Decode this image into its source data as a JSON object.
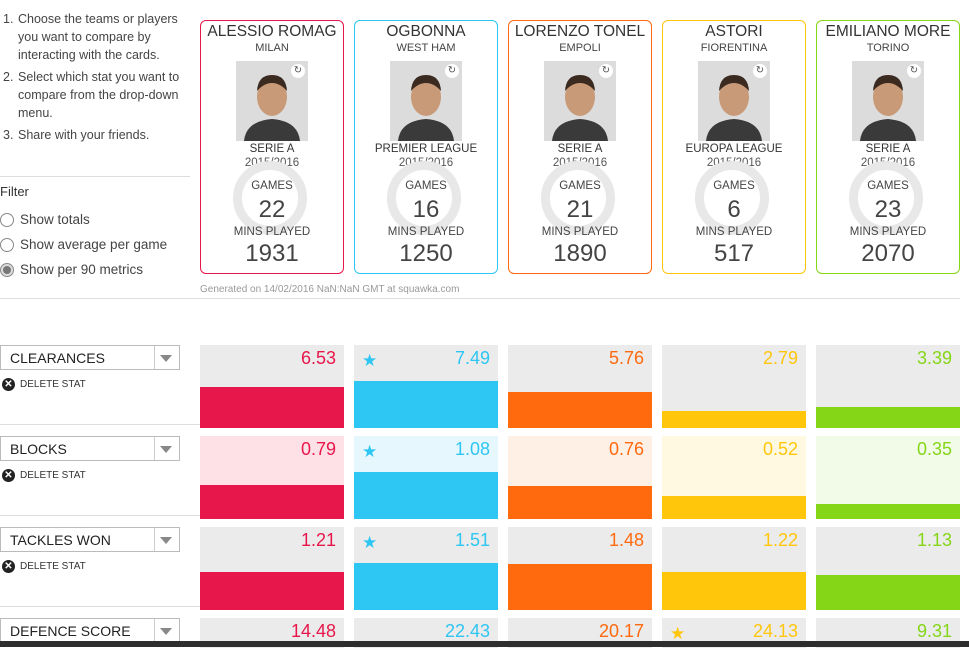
{
  "instructions": [
    {
      "num": "1.",
      "text": "Choose the teams or players you want to compare by interacting with the cards."
    },
    {
      "num": "2.",
      "text": "Select which stat you want to compare from the drop-down menu."
    },
    {
      "num": "3.",
      "text": "Share with your friends."
    }
  ],
  "filter": {
    "title": "Filter",
    "options": [
      {
        "label": "Show totals",
        "selected": false
      },
      {
        "label": "Show average per game",
        "selected": false
      },
      {
        "label": "Show per 90 metrics",
        "selected": true
      }
    ]
  },
  "labels": {
    "games": "GAMES",
    "mins_played": "MINS PLAYED",
    "delete_stat": "DELETE STAT"
  },
  "players": [
    {
      "name": "ALESSIO ROMAG",
      "club": "MILAN",
      "league": "SERIE A",
      "season": "2015/2016",
      "games": "22",
      "mins": "1931",
      "color": "#e8174b"
    },
    {
      "name": "OGBONNA",
      "club": "WEST HAM",
      "league": "PREMIER LEAGUE",
      "season": "2015/2016",
      "games": "16",
      "mins": "1250",
      "color": "#2ec6f2"
    },
    {
      "name": "LORENZO TONEL",
      "club": "EMPOLI",
      "league": "SERIE A",
      "season": "2015/2016",
      "games": "21",
      "mins": "1890",
      "color": "#ff6a0e"
    },
    {
      "name": "ASTORI",
      "club": "FIORENTINA",
      "league": "EUROPA LEAGUE",
      "season": "2015/2016",
      "games": "6",
      "mins": "517",
      "color": "#ffc60b"
    },
    {
      "name": "EMILIANO MORE",
      "club": "TORINO",
      "league": "SERIE A",
      "season": "2015/2016",
      "games": "23",
      "mins": "2070",
      "color": "#84d617"
    }
  ],
  "generated_text": "Generated on 14/02/2016 NaN:NaN GMT at squawka.com",
  "stats": [
    {
      "label": "CLEARANCES",
      "values": [
        "6.53",
        "7.49",
        "5.76",
        "2.79",
        "3.39"
      ],
      "best_index": 1,
      "level": [
        0.87,
        1.0,
        0.77,
        0.37,
        0.45
      ]
    },
    {
      "label": "BLOCKS",
      "values": [
        "0.79",
        "1.08",
        "0.76",
        "0.52",
        "0.35"
      ],
      "best_index": 1,
      "level": [
        0.73,
        1.0,
        0.7,
        0.48,
        0.32
      ]
    },
    {
      "label": "TACKLES WON",
      "values": [
        "1.21",
        "1.51",
        "1.48",
        "1.22",
        "1.13"
      ],
      "best_index": 1,
      "level": [
        0.8,
        1.0,
        0.98,
        0.81,
        0.75
      ]
    },
    {
      "label": "DEFENCE SCORE",
      "values": [
        "14.48",
        "22.43",
        "20.17",
        "24.13",
        "9.31"
      ],
      "best_index": 3,
      "level": [
        0.6,
        0.93,
        0.84,
        1.0,
        0.39
      ]
    }
  ]
}
